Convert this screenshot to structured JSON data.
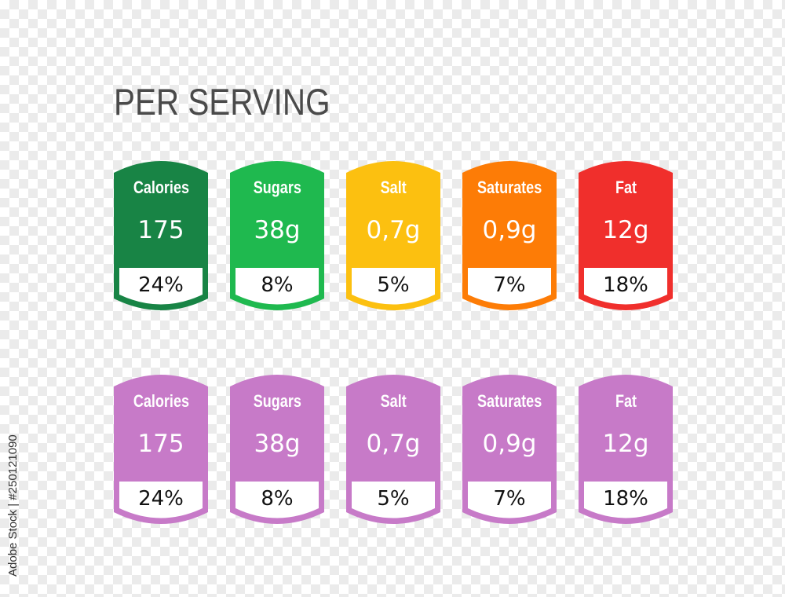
{
  "title": "PER SERVING",
  "watermark": "Adobe Stock | #250121090",
  "rows": [
    {
      "labels": [
        {
          "name": "Calories",
          "amount": "175",
          "percent": "24%",
          "color": "#188445"
        },
        {
          "name": "Sugars",
          "amount": "38g",
          "percent": "8%",
          "color": "#1fb94f"
        },
        {
          "name": "Salt",
          "amount": "0,7g",
          "percent": "5%",
          "color": "#fcc010"
        },
        {
          "name": "Saturates",
          "amount": "0,9g",
          "percent": "7%",
          "color": "#fd7c06"
        },
        {
          "name": "Fat",
          "amount": "12g",
          "percent": "18%",
          "color": "#f02f2c"
        }
      ]
    },
    {
      "labels": [
        {
          "name": "Calories",
          "amount": "175",
          "percent": "24%",
          "color": "#c77ac8"
        },
        {
          "name": "Sugars",
          "amount": "38g",
          "percent": "8%",
          "color": "#c77ac8"
        },
        {
          "name": "Salt",
          "amount": "0,7g",
          "percent": "5%",
          "color": "#c77ac8"
        },
        {
          "name": "Saturates",
          "amount": "0,9g",
          "percent": "7%",
          "color": "#c77ac8"
        },
        {
          "name": "Fat",
          "amount": "12g",
          "percent": "18%",
          "color": "#c77ac8"
        }
      ]
    }
  ]
}
